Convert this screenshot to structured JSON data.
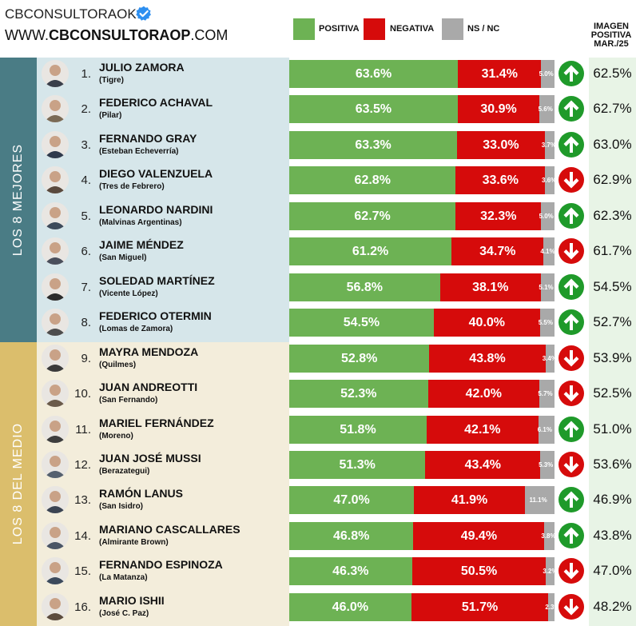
{
  "header": {
    "brand_name": "CBCONSULTORAOK",
    "brand_url_prefix": "WWW.",
    "brand_url_bold": "CBCONSULTORAOP",
    "brand_url_suffix": ".COM"
  },
  "legend": [
    {
      "label": "POSITIVA",
      "color": "#6db254"
    },
    {
      "label": "NEGATIVA",
      "color": "#d60b0b"
    },
    {
      "label": "NS / NC",
      "color": "#a9a9a9"
    }
  ],
  "imagen_header": [
    "IMAGEN",
    "POSITIVA",
    "MAR./25"
  ],
  "groups": {
    "top_label": "LOS 8 MEJORES",
    "bottom_label": "LOS 8 DEL MEDIO"
  },
  "chart_data": {
    "type": "bar",
    "stacked": true,
    "orientation": "horizontal",
    "series": [
      {
        "name": "POSITIVA",
        "color": "#6db254",
        "values": [
          63.6,
          63.5,
          63.3,
          62.8,
          62.7,
          61.2,
          56.8,
          54.5,
          52.8,
          52.3,
          51.8,
          51.3,
          47.0,
          46.8,
          46.3,
          46.0
        ]
      },
      {
        "name": "NEGATIVA",
        "color": "#d60b0b",
        "values": [
          31.4,
          30.9,
          33.0,
          33.6,
          32.3,
          34.7,
          38.1,
          40.0,
          43.8,
          42.0,
          42.1,
          43.4,
          41.9,
          49.4,
          50.5,
          51.7
        ]
      },
      {
        "name": "NS / NC",
        "color": "#a9a9a9",
        "values": [
          5.0,
          5.6,
          3.7,
          3.6,
          5.0,
          4.1,
          5.1,
          5.5,
          3.4,
          5.7,
          6.1,
          5.3,
          11.1,
          3.8,
          3.2,
          2.3
        ]
      }
    ],
    "rows": [
      {
        "rank": "1.",
        "name": "JULIO ZAMORA",
        "location": "(Tigre)",
        "pos": "63.6%",
        "neg": "31.4%",
        "ns": "5.0%",
        "trend": "up",
        "prev": "62.5%"
      },
      {
        "rank": "2.",
        "name": "FEDERICO ACHAVAL",
        "location": "(Pilar)",
        "pos": "63.5%",
        "neg": "30.9%",
        "ns": "5.6%",
        "trend": "up",
        "prev": "62.7%"
      },
      {
        "rank": "3.",
        "name": "FERNANDO GRAY",
        "location": "(Esteban Echeverría)",
        "pos": "63.3%",
        "neg": "33.0%",
        "ns": "3.7%",
        "trend": "up",
        "prev": "63.0%"
      },
      {
        "rank": "4.",
        "name": "DIEGO VALENZUELA",
        "location": "(Tres de Febrero)",
        "pos": "62.8%",
        "neg": "33.6%",
        "ns": "3.6%",
        "trend": "down",
        "prev": "62.9%"
      },
      {
        "rank": "5.",
        "name": "LEONARDO NARDINI",
        "location": "(Malvinas Argentinas)",
        "pos": "62.7%",
        "neg": "32.3%",
        "ns": "5.0%",
        "trend": "up",
        "prev": "62.3%"
      },
      {
        "rank": "6.",
        "name": "JAIME MÉNDEZ",
        "location": "(San Miguel)",
        "pos": "61.2%",
        "neg": "34.7%",
        "ns": "4.1%",
        "trend": "down",
        "prev": "61.7%"
      },
      {
        "rank": "7.",
        "name": "SOLEDAD MARTÍNEZ",
        "location": "(Vicente López)",
        "pos": "56.8%",
        "neg": "38.1%",
        "ns": "5.1%",
        "trend": "up",
        "prev": "54.5%"
      },
      {
        "rank": "8.",
        "name": "FEDERICO OTERMIN",
        "location": "(Lomas de Zamora)",
        "pos": "54.5%",
        "neg": "40.0%",
        "ns": "5.5%",
        "trend": "up",
        "prev": "52.7%"
      },
      {
        "rank": "9.",
        "name": "MAYRA MENDOZA",
        "location": "(Quilmes)",
        "pos": "52.8%",
        "neg": "43.8%",
        "ns": "3.4%",
        "trend": "down",
        "prev": "53.9%"
      },
      {
        "rank": "10.",
        "name": "JUAN ANDREOTTI",
        "location": "(San Fernando)",
        "pos": "52.3%",
        "neg": "42.0%",
        "ns": "5.7%",
        "trend": "down",
        "prev": "52.5%"
      },
      {
        "rank": "11.",
        "name": "MARIEL FERNÁNDEZ",
        "location": "(Moreno)",
        "pos": "51.8%",
        "neg": "42.1%",
        "ns": "6.1%",
        "trend": "up",
        "prev": "51.0%"
      },
      {
        "rank": "12.",
        "name": "JUAN JOSÉ MUSSI",
        "location": "(Berazategui)",
        "pos": "51.3%",
        "neg": "43.4%",
        "ns": "5.3%",
        "trend": "down",
        "prev": "53.6%"
      },
      {
        "rank": "13.",
        "name": "RAMÓN LANUS",
        "location": "(San Isidro)",
        "pos": "47.0%",
        "neg": "41.9%",
        "ns": "11.1%",
        "trend": "up",
        "prev": "46.9%"
      },
      {
        "rank": "14.",
        "name": "MARIANO CASCALLARES",
        "location": "(Almirante Brown)",
        "pos": "46.8%",
        "neg": "49.4%",
        "ns": "3.8%",
        "trend": "up",
        "prev": "43.8%"
      },
      {
        "rank": "15.",
        "name": "FERNANDO ESPINOZA",
        "location": "(La Matanza)",
        "pos": "46.3%",
        "neg": "50.5%",
        "ns": "3.2%",
        "trend": "down",
        "prev": "47.0%"
      },
      {
        "rank": "16.",
        "name": "MARIO ISHII",
        "location": "(José C. Paz)",
        "pos": "46.0%",
        "neg": "51.7%",
        "ns": "2.3%",
        "trend": "down",
        "prev": "48.2%"
      }
    ],
    "xlim": [
      0,
      100
    ],
    "legend_position": "top"
  }
}
